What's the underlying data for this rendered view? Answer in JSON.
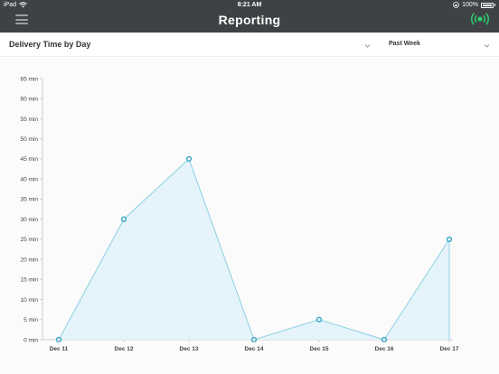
{
  "status_bar": {
    "device": "iPad",
    "time": "8:21 AM",
    "battery": "100%"
  },
  "header": {
    "title": "Reporting",
    "menu_icon": "hamburger-menu-icon",
    "live_icon": "broadcast-icon",
    "live_color": "#2ecc71"
  },
  "toolbar": {
    "chart_select": "Delivery Time by Day",
    "period_select": "Past Week"
  },
  "chart_data": {
    "type": "area",
    "categories": [
      "Dec 11",
      "Dec 12",
      "Dec 13",
      "Dec 14",
      "Dec 15",
      "Dec 16",
      "Dec 17"
    ],
    "values": [
      0,
      30,
      45,
      0,
      5,
      0,
      25
    ],
    "ylim": [
      0,
      65
    ],
    "yticks": [
      0,
      5,
      10,
      15,
      20,
      25,
      30,
      35,
      40,
      45,
      50,
      55,
      60,
      65
    ],
    "ytick_suffix": " min",
    "line_color": "#8fd0e3",
    "fill_color": "#e4f4fa",
    "point_color": "#3aa9c8",
    "grid": false
  }
}
